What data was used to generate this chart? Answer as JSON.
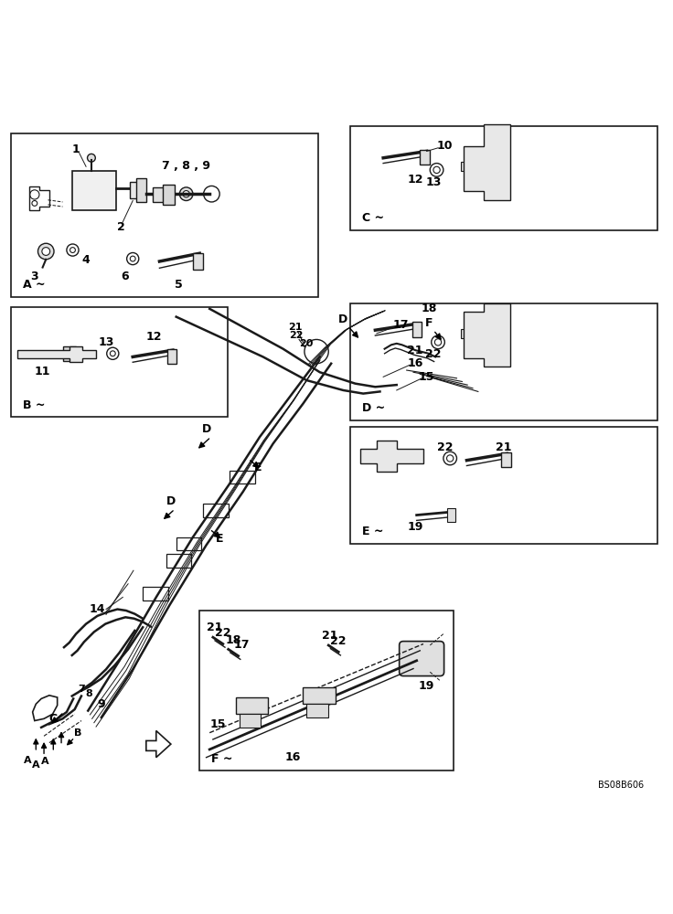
{
  "background_color": "#ffffff",
  "image_code": "BS08B606",
  "line_color": "#1a1a1a",
  "text_color": "#000000",
  "fig_width": 7.36,
  "fig_height": 10.0,
  "dpi": 100,
  "boxes": {
    "A": [
      0.012,
      0.74,
      0.46,
      0.245
    ],
    "B": [
      0.012,
      0.56,
      0.325,
      0.165
    ],
    "C": [
      0.52,
      0.84,
      0.46,
      0.155
    ],
    "D": [
      0.52,
      0.555,
      0.46,
      0.175
    ],
    "E": [
      0.52,
      0.37,
      0.46,
      0.175
    ],
    "F": [
      0.295,
      0.03,
      0.38,
      0.24
    ]
  }
}
